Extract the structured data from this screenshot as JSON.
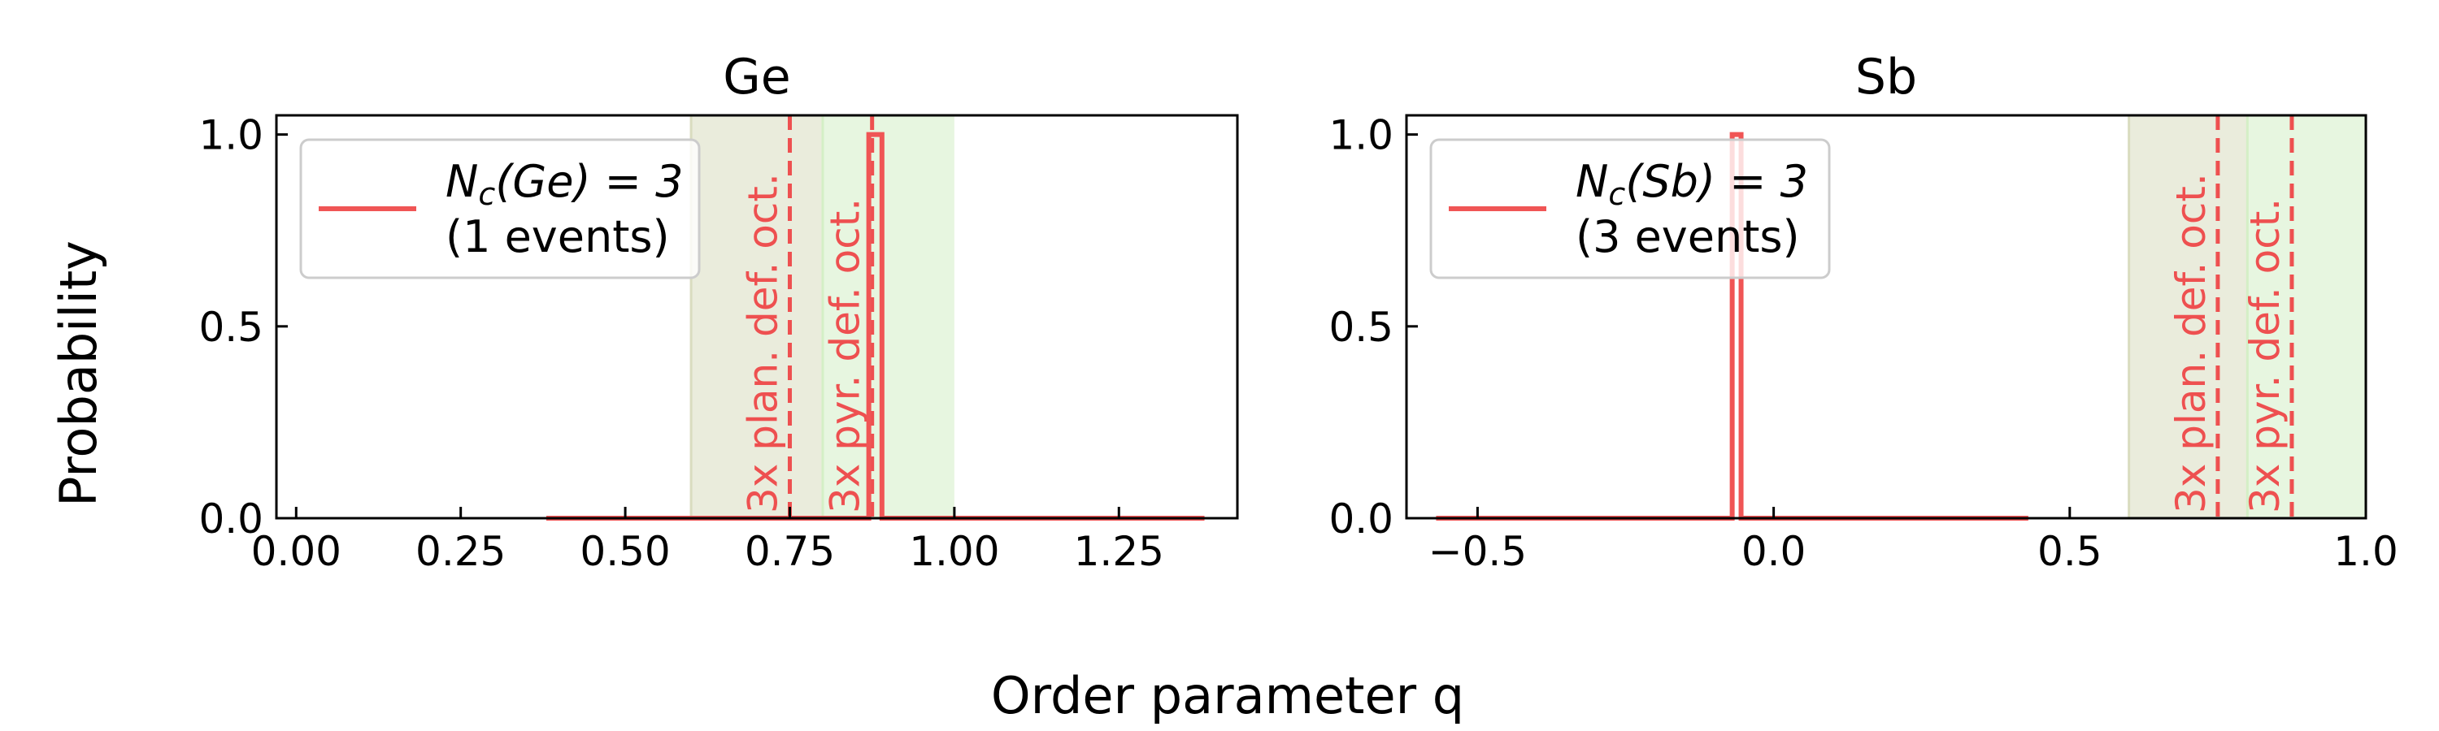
{
  "figure": {
    "ylabel": "Probability",
    "xlabel": "Order parameter q"
  },
  "chart_data": [
    {
      "type": "line",
      "title": "Ge",
      "xlabel": "",
      "ylabel": "Probability",
      "xlim": [
        -0.03,
        1.43
      ],
      "ylim": [
        0.0,
        1.05
      ],
      "xticks": [
        "0.00",
        "0.25",
        "0.50",
        "0.75",
        "1.00",
        "1.25"
      ],
      "xtick_values": [
        0.0,
        0.25,
        0.5,
        0.75,
        1.0,
        1.25
      ],
      "yticks": [
        "0.0",
        "0.5",
        "1.0"
      ],
      "ytick_values": [
        0.0,
        0.5,
        1.0
      ],
      "grid": false,
      "legend_position": "top-left",
      "legend": {
        "line1": "N_c(Ge) = 3",
        "line1_pre": "N",
        "line1_sub": "c",
        "line1_mid": "(Ge) = 3",
        "line2": "(1 events)"
      },
      "series": [
        {
          "name": "N_c(Ge) = 3 (1 events)",
          "x": [
            0.38,
            0.87,
            0.87,
            0.89,
            0.89,
            1.38
          ],
          "y": [
            0.0,
            0.0,
            1.0,
            1.0,
            0.0,
            0.0
          ]
        }
      ],
      "shaded_regions": [
        {
          "x0": 0.6,
          "x1": 0.8,
          "color": "#d9dcbf"
        },
        {
          "x0": 0.8,
          "x1": 1.0,
          "color": "#d4efc6"
        }
      ],
      "reference_lines": [
        {
          "x": 0.75,
          "label": "3x plan. def. oct."
        },
        {
          "x": 0.875,
          "label": "3x pyr. def. oct."
        }
      ],
      "colors": {
        "series": "#f05555",
        "reference": "#ee5050"
      }
    },
    {
      "type": "line",
      "title": "Sb",
      "xlabel": "",
      "ylabel": "",
      "xlim": [
        -0.62,
        1.0
      ],
      "ylim": [
        0.0,
        1.05
      ],
      "xticks": [
        "−0.5",
        "0.0",
        "0.5",
        "1.0"
      ],
      "xtick_values": [
        -0.5,
        0.0,
        0.5,
        1.0
      ],
      "yticks": [
        "0.0",
        "0.5",
        "1.0"
      ],
      "ytick_values": [
        0.0,
        0.5,
        1.0
      ],
      "grid": false,
      "legend_position": "top-left",
      "legend": {
        "line1": "N_c(Sb) = 3",
        "line1_pre": "N",
        "line1_sub": "c",
        "line1_mid": "(Sb) = 3",
        "line2": "(3 events)"
      },
      "series": [
        {
          "name": "N_c(Sb) = 3 (3 events)",
          "x": [
            -0.57,
            -0.07,
            -0.07,
            -0.055,
            -0.055,
            0.43
          ],
          "y": [
            0.0,
            0.0,
            1.0,
            1.0,
            0.0,
            0.0
          ]
        }
      ],
      "shaded_regions": [
        {
          "x0": 0.6,
          "x1": 0.8,
          "color": "#d9dcbf"
        },
        {
          "x0": 0.8,
          "x1": 1.0,
          "color": "#d4efc6"
        }
      ],
      "reference_lines": [
        {
          "x": 0.75,
          "label": "3x plan. def. oct."
        },
        {
          "x": 0.875,
          "label": "3x pyr. def. oct."
        }
      ],
      "colors": {
        "series": "#f05555",
        "reference": "#ee5050"
      }
    }
  ]
}
